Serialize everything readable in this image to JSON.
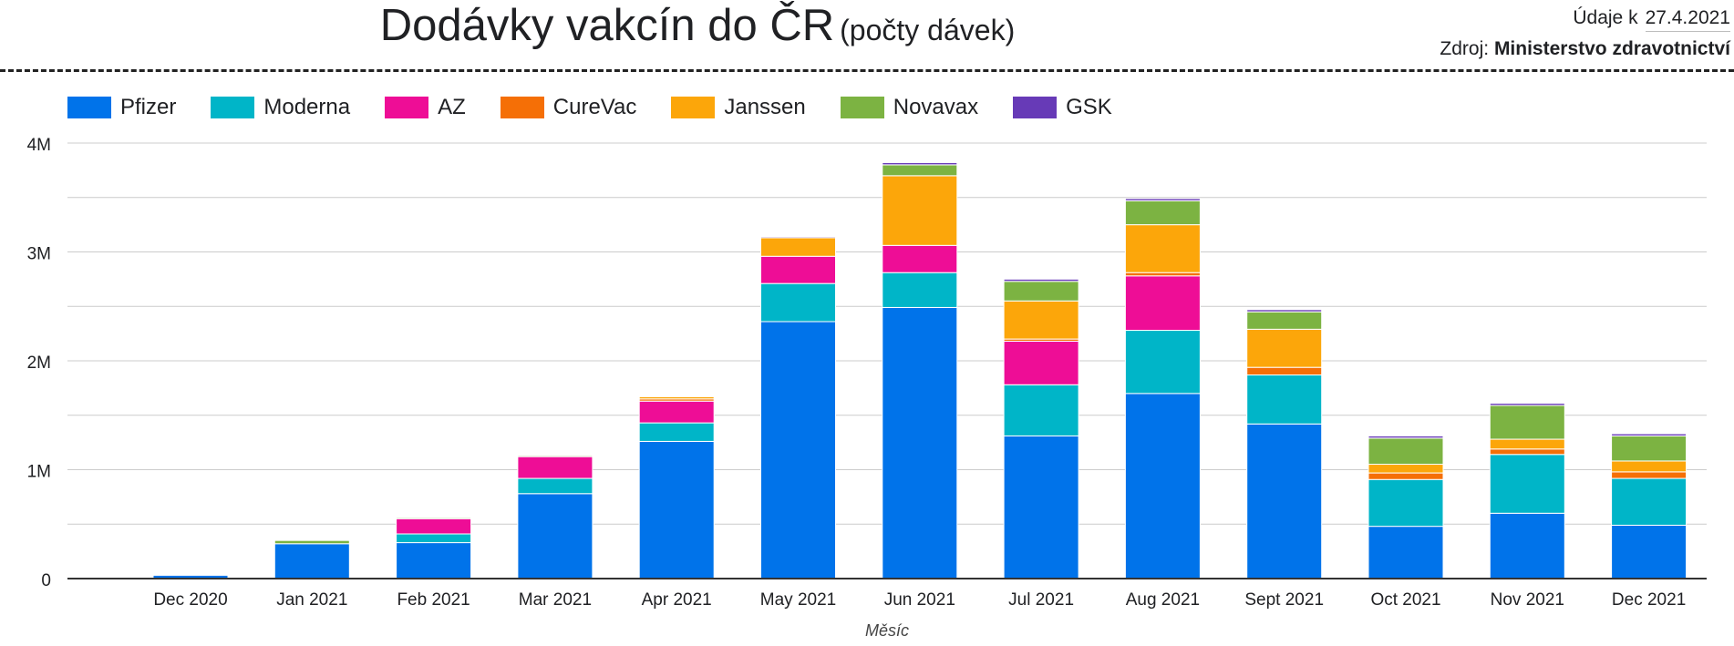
{
  "header": {
    "title": "Dodávky vakcín do ČR",
    "subtitle": "(počty dávek)",
    "date_label": "Údaje k",
    "date_value": "27.4.2021",
    "source_label": "Zdroj:",
    "source_value": "Ministerstvo zdravotnictví"
  },
  "chart_data": {
    "type": "bar",
    "stacked": true,
    "xlabel": "Měsíc",
    "ylabel": "",
    "ylim": [
      0,
      4000000
    ],
    "yticks": [
      0,
      1000000,
      2000000,
      3000000,
      4000000
    ],
    "ytick_labels": [
      "0",
      "1M",
      "2M",
      "3M",
      "4M"
    ],
    "grid": true,
    "legend_position": "top-left",
    "categories": [
      "Dec 2020",
      "Jan 2021",
      "Feb 2021",
      "Mar 2021",
      "Apr 2021",
      "May 2021",
      "Jun 2021",
      "Jul 2021",
      "Aug 2021",
      "Sept 2021",
      "Oct 2021",
      "Nov 2021",
      "Dec 2021"
    ],
    "series": [
      {
        "name": "Pfizer",
        "color": "#0073ea",
        "values": [
          30000,
          320000,
          330000,
          780000,
          1260000,
          2360000,
          2490000,
          1310000,
          1700000,
          1420000,
          480000,
          600000,
          490000
        ]
      },
      {
        "name": "Moderna",
        "color": "#00b5c8",
        "values": [
          0,
          0,
          80000,
          140000,
          170000,
          350000,
          320000,
          470000,
          580000,
          450000,
          430000,
          540000,
          430000
        ]
      },
      {
        "name": "AZ",
        "color": "#ee0d96",
        "values": [
          0,
          0,
          140000,
          200000,
          200000,
          250000,
          250000,
          400000,
          500000,
          0,
          0,
          0,
          0
        ]
      },
      {
        "name": "CureVac",
        "color": "#f56f06",
        "values": [
          0,
          0,
          0,
          0,
          20000,
          0,
          0,
          20000,
          30000,
          70000,
          60000,
          50000,
          60000
        ]
      },
      {
        "name": "Janssen",
        "color": "#fca60a",
        "values": [
          0,
          0,
          0,
          0,
          20000,
          170000,
          640000,
          350000,
          440000,
          350000,
          80000,
          90000,
          100000
        ]
      },
      {
        "name": "Novavax",
        "color": "#7cb342",
        "values": [
          0,
          30000,
          10000,
          10000,
          0,
          0,
          100000,
          180000,
          220000,
          160000,
          240000,
          310000,
          230000
        ]
      },
      {
        "name": "GSK",
        "color": "#673ab7",
        "values": [
          0,
          0,
          0,
          0,
          0,
          10000,
          20000,
          20000,
          20000,
          20000,
          20000,
          20000,
          20000
        ]
      }
    ]
  }
}
